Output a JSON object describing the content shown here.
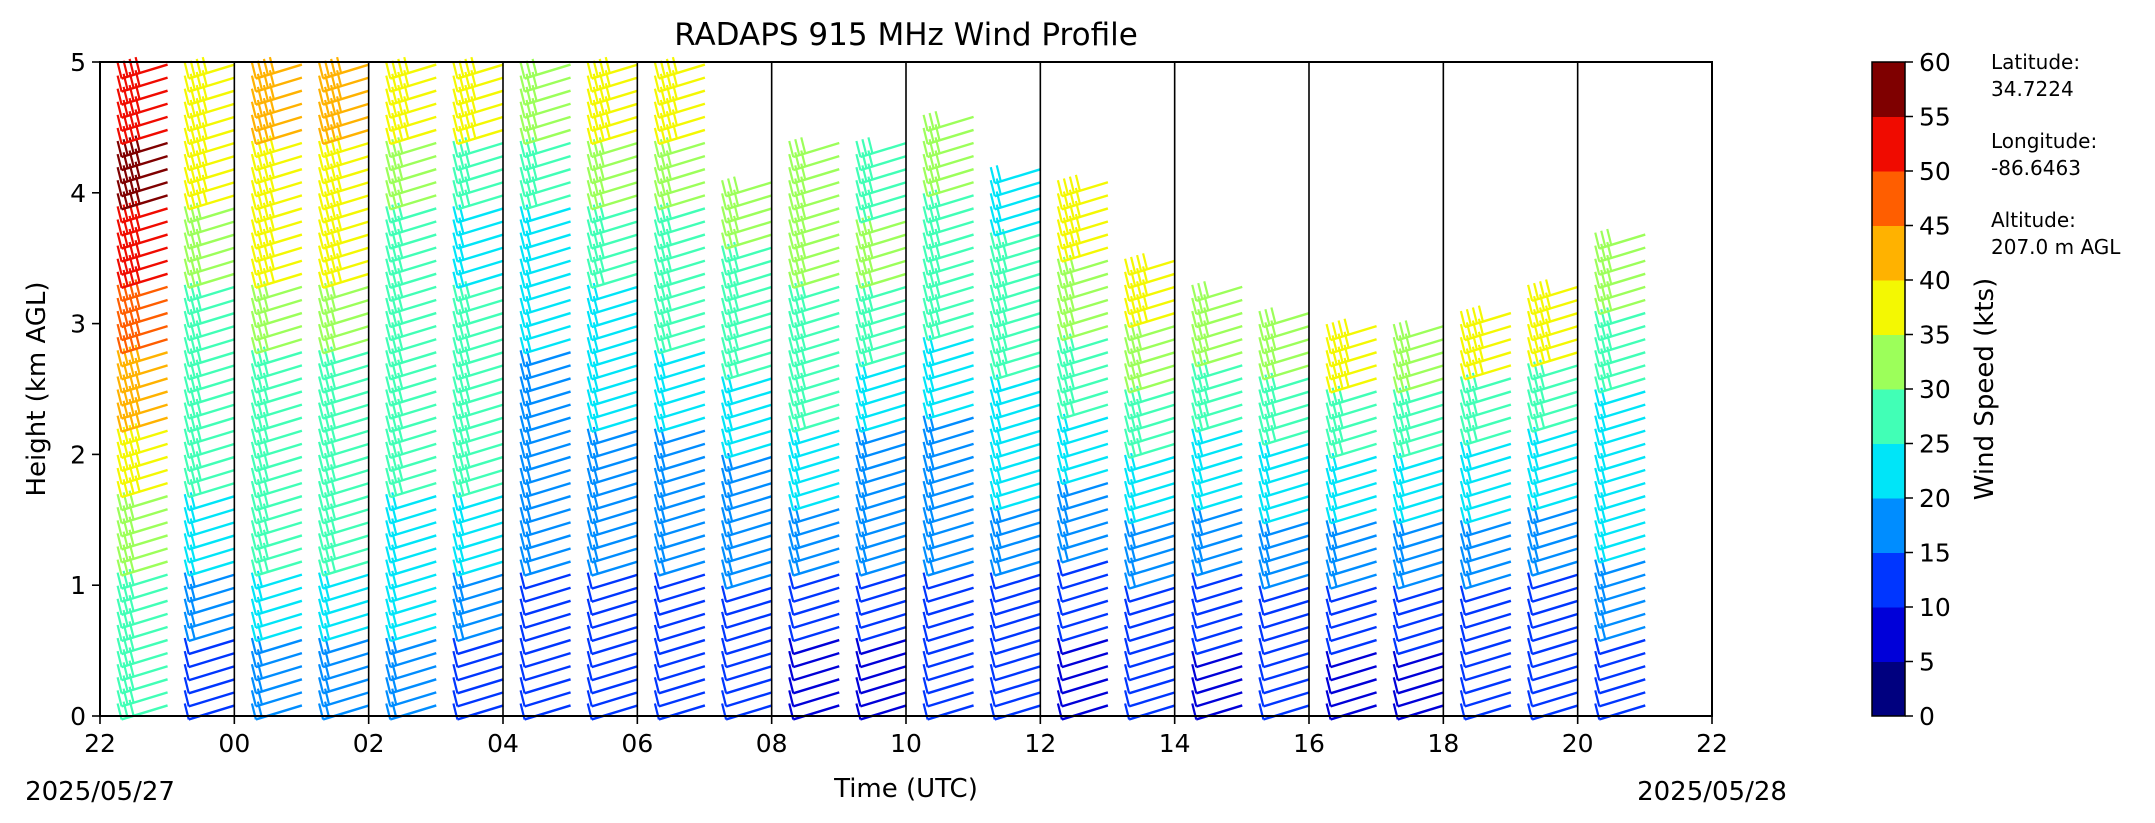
{
  "chart_data": {
    "type": "wind-barb-profile",
    "title": "RADAPS 915 MHz Wind Profile",
    "xlabel": "Time (UTC)",
    "ylabel": "Height (km AGL)",
    "x_ticks": [
      "22",
      "00",
      "02",
      "04",
      "06",
      "08",
      "10",
      "12",
      "14",
      "16",
      "18",
      "20",
      "22"
    ],
    "x_range_hours": [
      22,
      46
    ],
    "y_ticks": [
      "0",
      "1",
      "2",
      "3",
      "4",
      "5"
    ],
    "ylim": [
      0,
      5
    ],
    "start_date": "2025/05/27",
    "end_date": "2025/05/28",
    "grid": "vertical lines at each hour boundary",
    "colorbar": {
      "label": "Wind Speed (kts)",
      "ticks": [
        "0",
        "5",
        "10",
        "15",
        "20",
        "25",
        "30",
        "35",
        "40",
        "45",
        "50",
        "55",
        "60"
      ],
      "colors": [
        "#00007f",
        "#0000d9",
        "#0036ff",
        "#008dff",
        "#00e5f8",
        "#41ffb6",
        "#9cff5a",
        "#f4f802",
        "#ffb200",
        "#ff5e00",
        "#f00b00",
        "#7f0000"
      ]
    },
    "station": {
      "latitude_label": "Latitude:",
      "latitude": "34.7224",
      "longitude_label": "Longitude:",
      "longitude": "-86.6463",
      "altitude_label": "Altitude:",
      "altitude": "207.0 m AGL"
    },
    "profile_columns": [
      {
        "time": 22.5,
        "top_km": 5.0,
        "speeds": [
          25,
          25,
          30,
          35,
          40,
          45,
          50,
          55,
          50
        ]
      },
      {
        "time": 23.5,
        "top_km": 5.0,
        "speeds": [
          10,
          15,
          20,
          25,
          25,
          25,
          30,
          35,
          35
        ]
      },
      {
        "time": 24.5,
        "top_km": 5.0,
        "speeds": [
          15,
          20,
          25,
          25,
          25,
          30,
          35,
          35,
          40
        ]
      },
      {
        "time": 25.5,
        "top_km": 5.0,
        "speeds": [
          15,
          20,
          25,
          25,
          25,
          30,
          35,
          35,
          40
        ]
      },
      {
        "time": 26.5,
        "top_km": 5.0,
        "speeds": [
          15,
          20,
          20,
          25,
          25,
          25,
          25,
          30,
          35
        ]
      },
      {
        "time": 27.5,
        "top_km": 5.0,
        "speeds": [
          10,
          15,
          20,
          25,
          25,
          25,
          20,
          25,
          35
        ]
      },
      {
        "time": 28.5,
        "top_km": 5.0,
        "speeds": [
          10,
          10,
          15,
          15,
          15,
          20,
          20,
          25,
          30
        ]
      },
      {
        "time": 29.5,
        "top_km": 5.0,
        "speeds": [
          10,
          10,
          15,
          15,
          20,
          20,
          25,
          30,
          35
        ]
      },
      {
        "time": 30.5,
        "top_km": 5.0,
        "speeds": [
          10,
          10,
          15,
          15,
          20,
          25,
          25,
          30,
          35
        ]
      },
      {
        "time": 31.5,
        "top_km": 4.1,
        "speeds": [
          10,
          10,
          15,
          15,
          20,
          25,
          25,
          30
        ]
      },
      {
        "time": 32.5,
        "top_km": 4.4,
        "speeds": [
          5,
          10,
          15,
          20,
          25,
          25,
          30,
          30
        ]
      },
      {
        "time": 33.5,
        "top_km": 4.4,
        "speeds": [
          5,
          10,
          15,
          15,
          20,
          25,
          30,
          25
        ]
      },
      {
        "time": 34.5,
        "top_km": 4.6,
        "speeds": [
          10,
          10,
          15,
          15,
          20,
          25,
          25,
          30
        ]
      },
      {
        "time": 35.5,
        "top_km": 4.2,
        "speeds": [
          10,
          10,
          15,
          20,
          20,
          25,
          25,
          20
        ]
      },
      {
        "time": 36.5,
        "top_km": 4.1,
        "speeds": [
          5,
          10,
          15,
          20,
          25,
          30,
          35
        ]
      },
      {
        "time": 37.5,
        "top_km": 3.5,
        "speeds": [
          10,
          10,
          15,
          20,
          25,
          30,
          35
        ]
      },
      {
        "time": 38.5,
        "top_km": 3.3,
        "speeds": [
          5,
          10,
          15,
          20,
          25,
          30
        ]
      },
      {
        "time": 39.5,
        "top_km": 3.1,
        "speeds": [
          10,
          10,
          15,
          20,
          25,
          30
        ]
      },
      {
        "time": 40.5,
        "top_km": 3.0,
        "speeds": [
          5,
          10,
          15,
          20,
          25,
          35
        ]
      },
      {
        "time": 41.5,
        "top_km": 3.0,
        "speeds": [
          5,
          10,
          15,
          20,
          25,
          30
        ]
      },
      {
        "time": 42.5,
        "top_km": 3.1,
        "speeds": [
          10,
          10,
          15,
          20,
          25,
          35
        ]
      },
      {
        "time": 43.5,
        "top_km": 3.3,
        "speeds": [
          10,
          10,
          15,
          20,
          25,
          35
        ]
      },
      {
        "time": 44.5,
        "top_km": 3.7,
        "speeds": [
          10,
          15,
          20,
          20,
          25,
          30
        ]
      }
    ]
  }
}
